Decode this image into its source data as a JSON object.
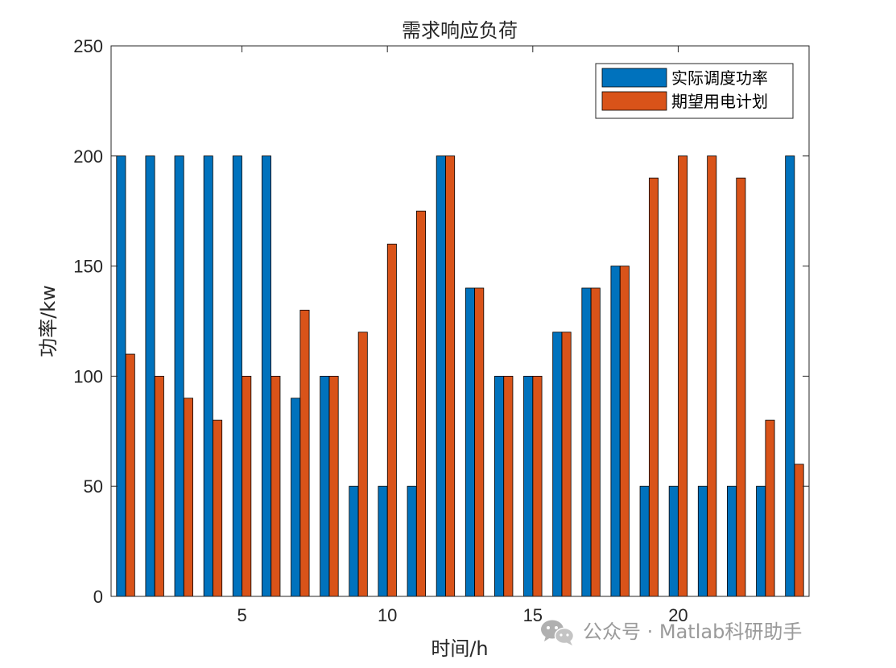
{
  "chart_data": {
    "type": "bar",
    "title": "需求响应负荷",
    "xlabel": "时间/h",
    "ylabel": "功率/kw",
    "categories": [
      1,
      2,
      3,
      4,
      5,
      6,
      7,
      8,
      9,
      10,
      11,
      12,
      13,
      14,
      15,
      16,
      17,
      18,
      19,
      20,
      21,
      22,
      23,
      24
    ],
    "x_ticks": [
      5,
      10,
      15,
      20
    ],
    "y_ticks": [
      0,
      50,
      100,
      150,
      200,
      250
    ],
    "xlim": [
      0.5,
      24.5
    ],
    "ylim": [
      0,
      250
    ],
    "grid": false,
    "legend_position": "top-right",
    "series": [
      {
        "name": "实际调度功率",
        "color": "#0072BD",
        "values": [
          200,
          200,
          200,
          200,
          200,
          200,
          90,
          100,
          50,
          50,
          50,
          200,
          140,
          100,
          100,
          120,
          140,
          150,
          50,
          50,
          50,
          50,
          50,
          200
        ]
      },
      {
        "name": "期望用电计划",
        "color": "#D95319",
        "values": [
          110,
          100,
          90,
          80,
          100,
          100,
          130,
          100,
          120,
          160,
          175,
          200,
          140,
          100,
          100,
          120,
          140,
          150,
          190,
          200,
          200,
          190,
          80,
          60
        ]
      }
    ]
  },
  "watermark": {
    "text": "公众号 · Matlab科研助手",
    "icon": "wechat-icon"
  }
}
